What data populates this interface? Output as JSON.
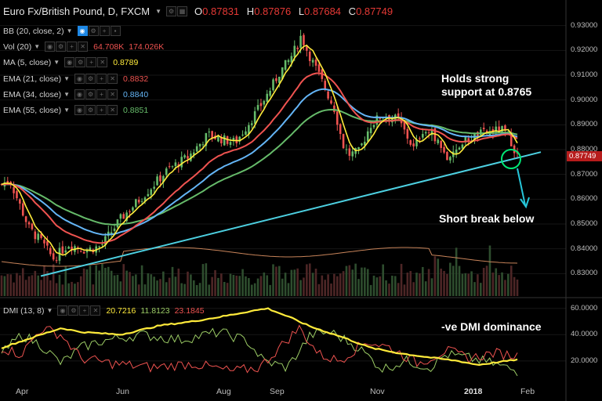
{
  "header": {
    "symbol": "Euro Fx/British Pound, D, FXCM",
    "open_label": "O",
    "open": "0.87831",
    "high_label": "H",
    "high": "0.87876",
    "low_label": "L",
    "low": "0.87684",
    "close_label": "C",
    "close": "0.87749"
  },
  "indicators": [
    {
      "label": "BB (20, close, 2)",
      "values": []
    },
    {
      "label": "Vol (20)",
      "values": [
        {
          "text": "64.708K",
          "color": "#ef5350"
        },
        {
          "text": "174.026K",
          "color": "#ef5350"
        }
      ]
    },
    {
      "label": "MA (5, close)",
      "values": [
        {
          "text": "0.8789",
          "color": "#ffeb3b"
        }
      ]
    },
    {
      "label": "EMA (21, close)",
      "values": [
        {
          "text": "0.8832",
          "color": "#ef5350"
        }
      ]
    },
    {
      "label": "EMA (34, close)",
      "values": [
        {
          "text": "0.8840",
          "color": "#64b5f6"
        }
      ]
    },
    {
      "label": "EMA (55, close)",
      "values": [
        {
          "text": "0.8851",
          "color": "#66bb6a"
        }
      ]
    }
  ],
  "dmi": {
    "label": "DMI (13, 8)",
    "adx": "20.7216",
    "plus_di": "11.8123",
    "minus_di": "23.1845",
    "colors": {
      "adx": "#ffeb3b",
      "plus_di": "#9ccc65",
      "minus_di": "#ef5350"
    }
  },
  "annotations": {
    "support_line1": "Holds strong",
    "support_line2": "support at 0.8765",
    "break": "Short break below",
    "dmi_note": "-ve DMI dominance"
  },
  "price_axis": {
    "ticks": [
      "0.93000",
      "0.92000",
      "0.91000",
      "0.90000",
      "0.89000",
      "0.88000",
      "0.87000",
      "0.86000",
      "0.85000",
      "0.84000",
      "0.83000"
    ],
    "last_price": "0.87749"
  },
  "dmi_axis": {
    "ticks": [
      "60.0000",
      "40.0000",
      "20.0000"
    ]
  },
  "time_axis": {
    "ticks": [
      "Apr",
      "Jun",
      "Aug",
      "Sep",
      "Nov",
      "2018",
      "Feb"
    ]
  },
  "chart_data": {
    "type": "candlestick",
    "ylim": [
      0.826,
      0.934
    ],
    "price_path": [
      [
        0.866,
        0.0
      ],
      [
        0.868,
        0.02
      ],
      [
        0.858,
        0.045
      ],
      [
        0.848,
        0.07
      ],
      [
        0.843,
        0.1
      ],
      [
        0.836,
        0.13
      ],
      [
        0.842,
        0.17
      ],
      [
        0.8395,
        0.21
      ],
      [
        0.841,
        0.25
      ],
      [
        0.852,
        0.3
      ],
      [
        0.862,
        0.36
      ],
      [
        0.872,
        0.42
      ],
      [
        0.877,
        0.47
      ],
      [
        0.886,
        0.52
      ],
      [
        0.884,
        0.56
      ],
      [
        0.883,
        0.59
      ],
      [
        0.89,
        0.62
      ],
      [
        0.897,
        0.65
      ],
      [
        0.905,
        0.68
      ],
      [
        0.911,
        0.7
      ],
      [
        0.916,
        0.725
      ],
      [
        0.922,
        0.745
      ],
      [
        0.926,
        0.755
      ],
      [
        0.92,
        0.77
      ],
      [
        0.91,
        0.8
      ],
      [
        0.896,
        0.84
      ],
      [
        0.882,
        0.86
      ],
      [
        0.878,
        0.875
      ],
      [
        0.879,
        0.9
      ],
      [
        0.89,
        0.93
      ],
      [
        0.894,
        0.96
      ],
      [
        0.892,
        1.0
      ],
      [
        0.886,
        1.02
      ],
      [
        0.88,
        1.04
      ],
      [
        0.888,
        1.06
      ],
      [
        0.886,
        1.09
      ],
      [
        0.88,
        1.11
      ],
      [
        0.875,
        1.13
      ],
      [
        0.883,
        1.16
      ],
      [
        0.886,
        1.2
      ],
      [
        0.887,
        1.23
      ],
      [
        0.888,
        1.26
      ],
      [
        0.885,
        1.28
      ],
      [
        0.8775,
        1.3
      ]
    ],
    "support_line": {
      "start": 0.829,
      "end": 0.879
    },
    "series": [
      {
        "name": "MA (5, close)",
        "color": "#ffeb3b"
      },
      {
        "name": "EMA (21, close)",
        "color": "#ef5350"
      },
      {
        "name": "EMA (34, close)",
        "color": "#64b5f6"
      },
      {
        "name": "EMA (55, close)",
        "color": "#66bb6a"
      }
    ],
    "dmi_ylim": [
      5,
      64
    ],
    "adx_path": [
      [
        30,
        0
      ],
      [
        35,
        0.05
      ],
      [
        40,
        0.1
      ],
      [
        45,
        0.15
      ],
      [
        42,
        0.2
      ],
      [
        40,
        0.3
      ],
      [
        47,
        0.4
      ],
      [
        50,
        0.48
      ],
      [
        54,
        0.56
      ],
      [
        58,
        0.63
      ],
      [
        60,
        0.67
      ],
      [
        54,
        0.72
      ],
      [
        46,
        0.78
      ],
      [
        38,
        0.86
      ],
      [
        30,
        0.93
      ],
      [
        26,
        1.0
      ],
      [
        23,
        1.07
      ],
      [
        20,
        1.15
      ],
      [
        17,
        1.2
      ],
      [
        19,
        1.25
      ],
      [
        21,
        1.3
      ]
    ],
    "plus_di_path": [
      [
        25,
        0
      ],
      [
        40,
        0.05
      ],
      [
        32,
        0.1
      ],
      [
        18,
        0.15
      ],
      [
        30,
        0.2
      ],
      [
        35,
        0.25
      ],
      [
        40,
        0.35
      ],
      [
        36,
        0.45
      ],
      [
        42,
        0.55
      ],
      [
        35,
        0.62
      ],
      [
        20,
        0.66
      ],
      [
        15,
        0.72
      ],
      [
        40,
        0.78
      ],
      [
        42,
        0.83
      ],
      [
        30,
        0.9
      ],
      [
        14,
        0.96
      ],
      [
        20,
        1.02
      ],
      [
        15,
        1.08
      ],
      [
        25,
        1.12
      ],
      [
        22,
        1.18
      ],
      [
        18,
        1.24
      ],
      [
        12,
        1.3
      ]
    ],
    "minus_di_path": [
      [
        30,
        0
      ],
      [
        25,
        0.05
      ],
      [
        45,
        0.1
      ],
      [
        40,
        0.15
      ],
      [
        22,
        0.2
      ],
      [
        18,
        0.28
      ],
      [
        15,
        0.38
      ],
      [
        18,
        0.48
      ],
      [
        12,
        0.58
      ],
      [
        15,
        0.65
      ],
      [
        30,
        0.7
      ],
      [
        45,
        0.75
      ],
      [
        25,
        0.8
      ],
      [
        20,
        0.85
      ],
      [
        35,
        0.92
      ],
      [
        30,
        0.98
      ],
      [
        18,
        1.05
      ],
      [
        28,
        1.12
      ],
      [
        22,
        1.18
      ],
      [
        26,
        1.24
      ],
      [
        24,
        1.3
      ]
    ]
  }
}
